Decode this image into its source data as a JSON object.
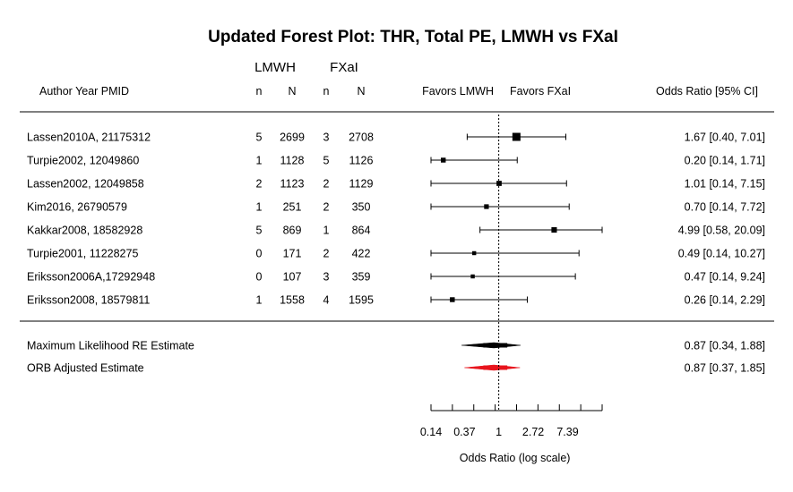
{
  "chart_data": {
    "type": "forest",
    "title": "Updated Forest Plot: THR, Total PE, LMWH vs FXaI",
    "group_headers": [
      "LMWH",
      "FXaI"
    ],
    "column_headers": {
      "study": "Author Year PMID",
      "n1": "n",
      "N1": "N",
      "n2": "n",
      "N2": "N",
      "favors_left": "Favors LMWH",
      "favors_right": "Favors FXaI",
      "effect": "Odds Ratio [95% CI]"
    },
    "studies": [
      {
        "label": "Lassen2010A, 21175312",
        "n1": "5",
        "N1": "2699",
        "n2": "3",
        "N2": "2708",
        "or": 1.67,
        "lo": 0.4,
        "hi": 7.01,
        "weight": 1.0,
        "text": "1.67 [0.40,  7.01]"
      },
      {
        "label": "Turpie2002, 12049860",
        "n1": "1",
        "N1": "1128",
        "n2": "5",
        "N2": "1126",
        "or": 0.2,
        "lo": 0.14,
        "hi": 1.71,
        "weight": 0.45,
        "text": "0.20 [0.14,  1.71]"
      },
      {
        "label": "Lassen2002, 12049858",
        "n1": "2",
        "N1": "1123",
        "n2": "2",
        "N2": "1129",
        "or": 1.01,
        "lo": 0.14,
        "hi": 7.15,
        "weight": 0.5,
        "text": "1.01 [0.14,  7.15]"
      },
      {
        "label": "Kim2016, 26790579",
        "n1": "1",
        "N1": "251",
        "n2": "2",
        "N2": "350",
        "or": 0.7,
        "lo": 0.14,
        "hi": 7.72,
        "weight": 0.42,
        "text": "0.70 [0.14,  7.72]"
      },
      {
        "label": "Kakkar2008, 18582928",
        "n1": "5",
        "N1": "869",
        "n2": "1",
        "N2": "864",
        "or": 4.99,
        "lo": 0.58,
        "hi": 20.09,
        "weight": 0.55,
        "text": "4.99 [0.58, 20.09]"
      },
      {
        "label": "Turpie2001, 11228275",
        "n1": "0",
        "N1": "171",
        "n2": "2",
        "N2": "422",
        "or": 0.49,
        "lo": 0.14,
        "hi": 10.27,
        "weight": 0.3,
        "text": "0.49 [0.14, 10.27]"
      },
      {
        "label": "Eriksson2006A,17292948",
        "n1": "0",
        "N1": "107",
        "n2": "3",
        "N2": "359",
        "or": 0.47,
        "lo": 0.14,
        "hi": 9.24,
        "weight": 0.3,
        "text": "0.47 [0.14,  9.24]"
      },
      {
        "label": "Eriksson2008, 18579811",
        "n1": "1",
        "N1": "1558",
        "n2": "4",
        "N2": "1595",
        "or": 0.26,
        "lo": 0.14,
        "hi": 2.29,
        "weight": 0.45,
        "text": "0.26 [0.14,  2.29]"
      }
    ],
    "summaries": [
      {
        "label": "Maximum Likelihood RE Estimate",
        "or": 0.87,
        "lo": 0.34,
        "hi": 1.88,
        "color": "#000000",
        "text": "0.87 [0.34,  1.88]"
      },
      {
        "label": "ORB Adjusted Estimate",
        "or": 0.87,
        "lo": 0.37,
        "hi": 1.85,
        "color": "#e8141c",
        "text": "0.87 [0.37,  1.85]"
      }
    ],
    "x_axis": {
      "label": "Odds Ratio (log scale)",
      "scale": "log",
      "ticks": [
        0.14,
        0.37,
        1,
        2.72,
        7.39
      ],
      "tick_labels": [
        "0.14",
        "0.37",
        "1",
        "2.72",
        "7.39"
      ],
      "limits": [
        0.14,
        20.09
      ],
      "reference_line": 1
    }
  }
}
